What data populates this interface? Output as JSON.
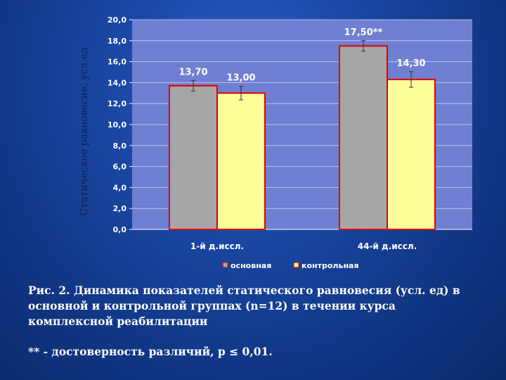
{
  "chart_data": {
    "type": "bar",
    "categories": [
      "1-й д.иссл.",
      "44-й д.иссл."
    ],
    "series": [
      {
        "name": "основная",
        "values": [
          13.7,
          17.5
        ],
        "labels": [
          "13,70",
          "17,50**"
        ],
        "color": "#a6a6a6",
        "error": [
          0.5,
          0.5
        ]
      },
      {
        "name": "контрольная",
        "values": [
          13.0,
          14.3
        ],
        "labels": [
          "13,00",
          "14,30"
        ],
        "color": "#ffff99",
        "error": [
          0.65,
          0.75
        ]
      }
    ],
    "ylabel": "Статическое равновесие, усл.ед",
    "ylim": [
      0,
      20
    ],
    "yticks": [
      "0,0",
      "2,0",
      "4,0",
      "6,0",
      "8,0",
      "10,0",
      "12,0",
      "14,0",
      "16,0",
      "18,0",
      "20,0"
    ],
    "grid": true,
    "legend": "bottom",
    "plot_bg": "#6f7fd2",
    "bar_border": "#e00000"
  },
  "caption": "Рис. 2. Динамика показателей статического равновесия (усл. ед) в основной и контрольной группах (n=12) в течении курса комплексной реабилитации",
  "note": "** - достоверность различий, р ≤ 0,01."
}
